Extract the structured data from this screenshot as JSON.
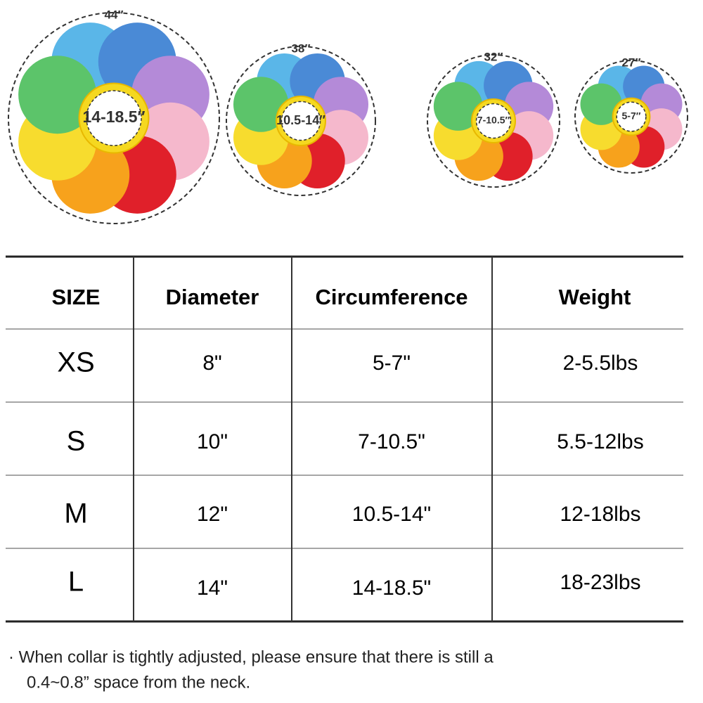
{
  "flowers": [
    {
      "outer": "44″",
      "inner": "14-18.5″"
    },
    {
      "outer": "38″",
      "inner": "10.5-14″"
    },
    {
      "outer": "32″",
      "inner": "7-10.5″"
    },
    {
      "outer": "27″",
      "inner": "5-7″"
    }
  ],
  "table": {
    "header": [
      "SIZE",
      "Diameter",
      "Circumference",
      "Weight"
    ],
    "rows": [
      [
        "XS",
        "8\"",
        "5-7\"",
        "2-5.5lbs"
      ],
      [
        "S",
        "10\"",
        "7-10.5\"",
        "5.5-12lbs"
      ],
      [
        "M",
        "12\"",
        "10.5-14\"",
        "12-18lbs"
      ],
      [
        "L",
        "14\"",
        "14-18.5\"",
        "18-23lbs"
      ]
    ]
  },
  "note": {
    "line1": "· When collar is tightly adjusted, please ensure that there is still a",
    "line2": "0.4~0.8” space from the neck."
  }
}
